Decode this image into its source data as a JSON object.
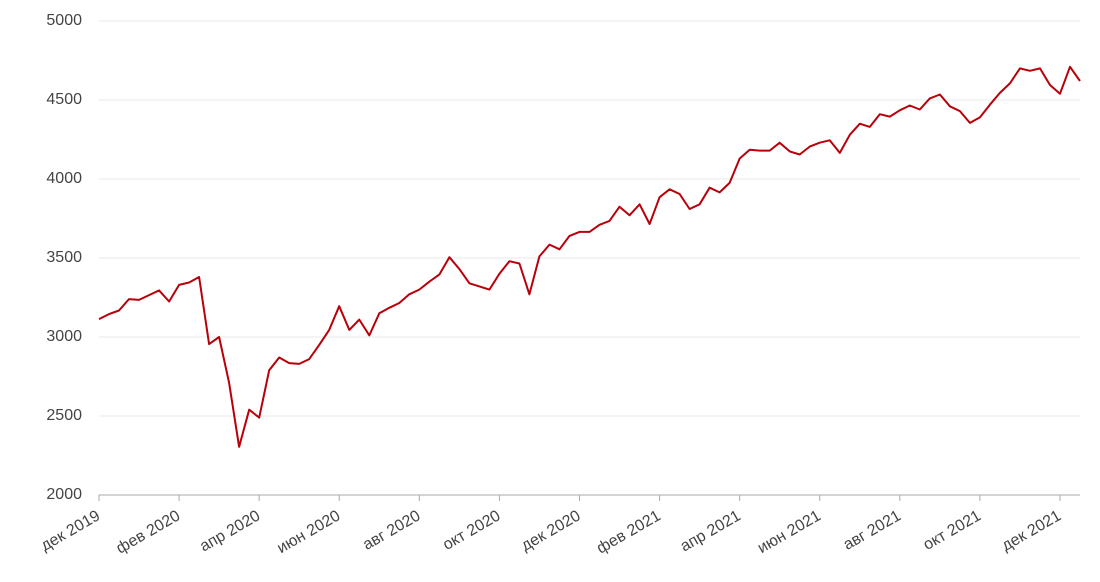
{
  "chart_data": {
    "type": "line",
    "categories": [
      "дек 2019",
      null,
      null,
      null,
      null,
      null,
      null,
      null,
      "фев 2020",
      null,
      null,
      null,
      null,
      null,
      null,
      null,
      "апр 2020",
      null,
      null,
      null,
      null,
      null,
      null,
      null,
      "июн 2020",
      null,
      null,
      null,
      null,
      null,
      null,
      null,
      "авг 2020",
      null,
      null,
      null,
      null,
      null,
      null,
      null,
      "окт 2020",
      null,
      null,
      null,
      null,
      null,
      null,
      null,
      "дек 2020",
      null,
      null,
      null,
      null,
      null,
      null,
      null,
      "фев 2021",
      null,
      null,
      null,
      null,
      null,
      null,
      null,
      "апр 2021",
      null,
      null,
      null,
      null,
      null,
      null,
      null,
      "июн 2021",
      null,
      null,
      null,
      null,
      null,
      null,
      null,
      "авг 2021",
      null,
      null,
      null,
      null,
      null,
      null,
      null,
      "окт 2021",
      null,
      null,
      null,
      null,
      null,
      null,
      null,
      "дек 2021",
      null,
      null
    ],
    "series": [
      {
        "color": "#b8000a",
        "values": [
          3113,
          3145,
          3168,
          3240,
          3235,
          3265,
          3295,
          3225,
          3330,
          3345,
          3380,
          2955,
          3000,
          2710,
          2305,
          2540,
          2490,
          2790,
          2870,
          2835,
          2830,
          2860,
          2950,
          3045,
          3195,
          3045,
          3110,
          3010,
          3150,
          3185,
          3215,
          3270,
          3300,
          3350,
          3395,
          3505,
          3430,
          3340,
          3320,
          3300,
          3400,
          3480,
          3465,
          3270,
          3510,
          3585,
          3555,
          3640,
          3665,
          3665,
          3710,
          3735,
          3825,
          3770,
          3840,
          3715,
          3885,
          3935,
          3905,
          3810,
          3840,
          3945,
          3915,
          3975,
          4130,
          4185,
          4180,
          4180,
          4230,
          4175,
          4155,
          4205,
          4230,
          4245,
          4165,
          4280,
          4350,
          4330,
          4410,
          4395,
          4435,
          4465,
          4440,
          4510,
          4535,
          4460,
          4430,
          4355,
          4390,
          4470,
          4545,
          4605,
          4700,
          4685,
          4700,
          4595,
          4540,
          4710,
          4620
        ]
      }
    ],
    "ylim": [
      2000,
      5000
    ],
    "yticks": [
      2000,
      2500,
      3000,
      3500,
      4000,
      4500,
      5000
    ],
    "grid": true
  }
}
